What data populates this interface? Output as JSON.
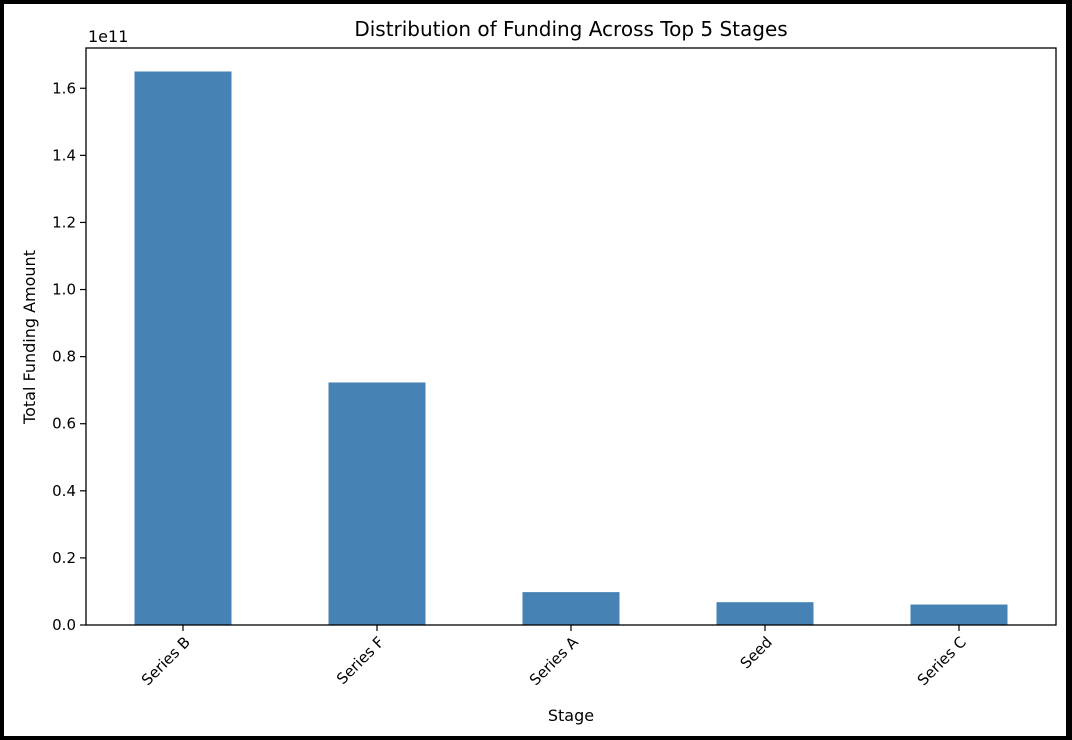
{
  "chart_data": {
    "type": "bar",
    "title": "Distribution of Funding Across Top 5 Stages",
    "xlabel": "Stage",
    "ylabel": "Total Funding Amount",
    "offset_label": "1e11",
    "categories": [
      "Series B",
      "Series F",
      "Series A",
      "Seed",
      "Series C"
    ],
    "values": [
      165000000000,
      72300000000,
      9800000000,
      6800000000,
      6100000000
    ],
    "ylim": [
      0,
      172000000000
    ],
    "yticks": [
      0,
      20000000000,
      40000000000,
      60000000000,
      80000000000,
      100000000000,
      120000000000,
      140000000000,
      160000000000
    ],
    "ytick_labels": [
      "0.0",
      "0.2",
      "0.4",
      "0.6",
      "0.8",
      "1.0",
      "1.2",
      "1.4",
      "1.6"
    ],
    "bar_color": "#4682b4",
    "grid": false,
    "legend": "none"
  }
}
